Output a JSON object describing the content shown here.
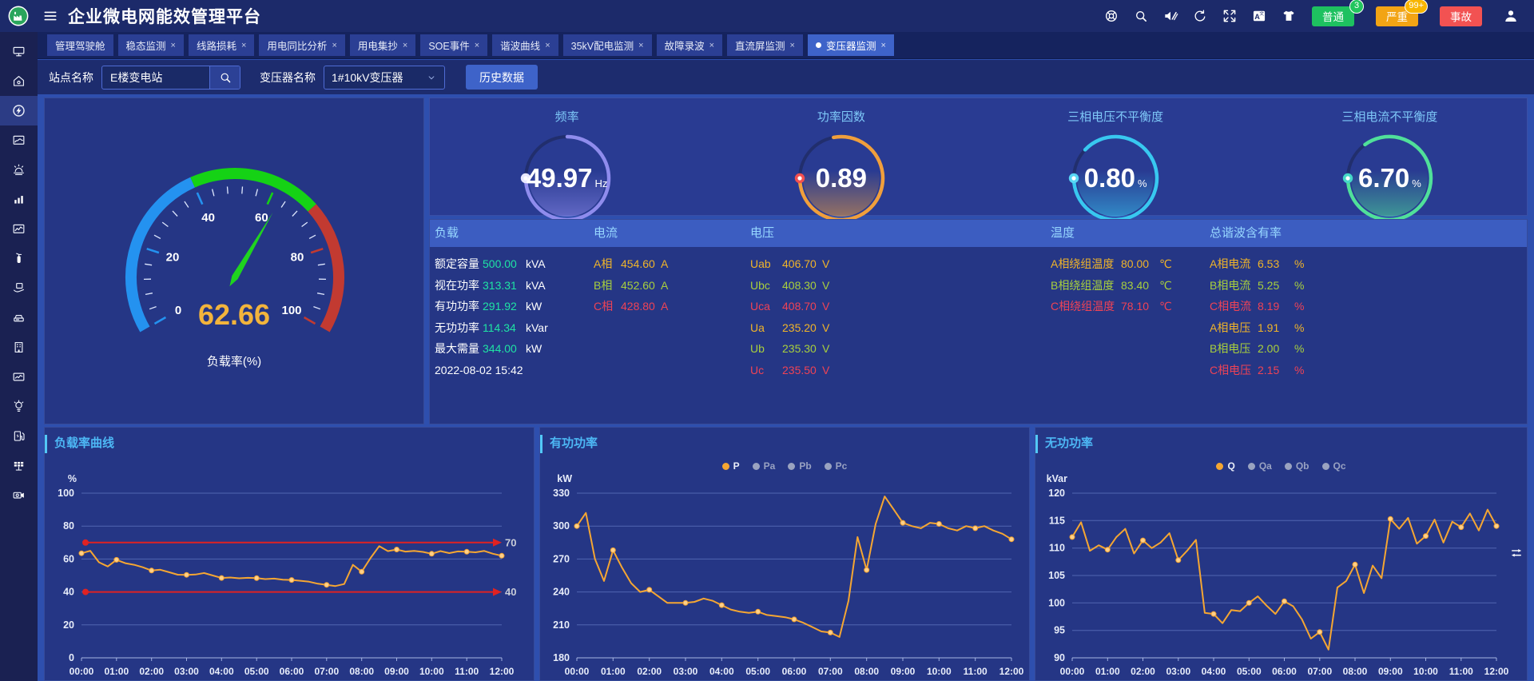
{
  "header": {
    "title": "企业微电网能效管理平台",
    "actions": [
      {
        "name": "help-icon"
      },
      {
        "name": "search-icon"
      },
      {
        "name": "mute-icon"
      },
      {
        "name": "refresh-icon"
      },
      {
        "name": "fullscreen-icon"
      },
      {
        "name": "translate-icon"
      },
      {
        "name": "theme-icon"
      }
    ],
    "alarm_buttons": [
      {
        "label": "普通",
        "badge": "3",
        "color": "#1ec160",
        "badge_color": "#22c55e"
      },
      {
        "label": "严重",
        "badge": "99+",
        "color": "#f2a414",
        "badge_color": "#f7b500"
      },
      {
        "label": "事故",
        "badge": "",
        "color": "#f25252",
        "badge_color": ""
      }
    ],
    "user_icon": "user-icon"
  },
  "tabs": [
    {
      "label": "管理驾驶舱",
      "closable": false,
      "active": false
    },
    {
      "label": "稳态监测",
      "closable": true,
      "active": false
    },
    {
      "label": "线路损耗",
      "closable": true,
      "active": false
    },
    {
      "label": "用电同比分析",
      "closable": true,
      "active": false
    },
    {
      "label": "用电集抄",
      "closable": true,
      "active": false
    },
    {
      "label": "SOE事件",
      "closable": true,
      "active": false
    },
    {
      "label": "谐波曲线",
      "closable": true,
      "active": false
    },
    {
      "label": "35kV配电监测",
      "closable": true,
      "active": false
    },
    {
      "label": "故障录波",
      "closable": true,
      "active": false
    },
    {
      "label": "直流屏监测",
      "closable": true,
      "active": false
    },
    {
      "label": "变压器监测",
      "closable": true,
      "active": true
    }
  ],
  "filters": {
    "site_label": "站点名称",
    "site_value": "E楼变电站",
    "transformer_label": "变压器名称",
    "transformer_value": "1#10kV变压器",
    "history_button": "历史数据"
  },
  "sidebar": {
    "items": [
      {
        "name": "screen-wall-icon"
      },
      {
        "name": "home-monitor-icon"
      },
      {
        "name": "energy-flow-icon",
        "active": true
      },
      {
        "name": "area-chart-icon"
      },
      {
        "name": "alarm-icon"
      },
      {
        "name": "bar-chart-icon"
      },
      {
        "name": "line-chart-icon"
      },
      {
        "name": "fire-extinguisher-icon"
      },
      {
        "name": "hand-report-icon"
      },
      {
        "name": "scanner-icon"
      },
      {
        "name": "building-icon"
      },
      {
        "name": "trend-card-icon"
      },
      {
        "name": "bulb-icon"
      },
      {
        "name": "ev-charger-icon"
      },
      {
        "name": "grid-panel-icon"
      },
      {
        "name": "camera-icon"
      }
    ]
  },
  "palette": {
    "ok": "#1fe3a4",
    "a": "#f0b429",
    "b": "#a8cf3d",
    "c": "#ef4355",
    "w": "#ffffff"
  },
  "load_gauge": {
    "value": 62.66,
    "label": "负载率(%)",
    "min": 0,
    "max": 100,
    "ticks": [
      0,
      20,
      40,
      60,
      80,
      100
    ],
    "segments": [
      {
        "to": 40,
        "color": "#2492f0"
      },
      {
        "to": 70,
        "color": "#15d215"
      },
      {
        "to": 100,
        "color": "#c23a31"
      }
    ],
    "value_color": "#f2b43c",
    "needle_color": "#1fd41f"
  },
  "ring_gauges": [
    {
      "title": "频率",
      "value": "49.97",
      "unit": "Hz",
      "color": "#8f8ced",
      "dot": "#e9e9ff"
    },
    {
      "title": "功率因数",
      "value": "0.89",
      "unit": "",
      "color": "#f09f3c",
      "dot": "#f25050"
    },
    {
      "title": "三相电压不平衡度",
      "value": "0.80",
      "unit": "%",
      "color": "#38c8f0",
      "dot": "#58d6f5"
    },
    {
      "title": "三相电流不平衡度",
      "value": "6.70",
      "unit": "%",
      "color": "#50e09a",
      "dot": "#45d8c8"
    }
  ],
  "table": {
    "columns": [
      {
        "header": "负载",
        "rows": [
          {
            "label": "额定容量",
            "value": "500.00",
            "unit": "kVA",
            "c": "ok"
          },
          {
            "label": "视在功率",
            "value": "313.31",
            "unit": "kVA",
            "c": "ok"
          },
          {
            "label": "有功功率",
            "value": "291.92",
            "unit": "kW",
            "c": "ok"
          },
          {
            "label": "无功功率",
            "value": "114.34",
            "unit": "kVar",
            "c": "ok"
          },
          {
            "label": "最大需量",
            "value": "344.00",
            "unit": "kW",
            "c": "ok"
          },
          {
            "label": "2022-08-02 15:42",
            "value": "",
            "unit": "",
            "c": "w"
          }
        ]
      },
      {
        "header": "电流",
        "rows": [
          {
            "label": "A相",
            "value": "454.60",
            "unit": "A",
            "c": "a"
          },
          {
            "label": "B相",
            "value": "452.60",
            "unit": "A",
            "c": "b"
          },
          {
            "label": "C相",
            "value": "428.80",
            "unit": "A",
            "c": "c"
          }
        ]
      },
      {
        "header": "电压",
        "rows": [
          {
            "label": "Uab",
            "value": "406.70",
            "unit": "V",
            "c": "a"
          },
          {
            "label": "Ubc",
            "value": "408.30",
            "unit": "V",
            "c": "b"
          },
          {
            "label": "Uca",
            "value": "408.70",
            "unit": "V",
            "c": "c"
          },
          {
            "label": "Ua",
            "value": "235.20",
            "unit": "V",
            "c": "a"
          },
          {
            "label": "Ub",
            "value": "235.30",
            "unit": "V",
            "c": "b"
          },
          {
            "label": "Uc",
            "value": "235.50",
            "unit": "V",
            "c": "c"
          }
        ]
      },
      {
        "header": "温度",
        "rows": [
          {
            "label": "A相绕组温度",
            "value": "80.00",
            "unit": "℃",
            "c": "a"
          },
          {
            "label": "B相绕组温度",
            "value": "83.40",
            "unit": "℃",
            "c": "b"
          },
          {
            "label": "C相绕组温度",
            "value": "78.10",
            "unit": "℃",
            "c": "c"
          }
        ]
      },
      {
        "header": "总谐波含有率",
        "rows": [
          {
            "label": "A相电流",
            "value": "6.53",
            "unit": "%",
            "c": "a"
          },
          {
            "label": "B相电流",
            "value": "5.25",
            "unit": "%",
            "c": "b"
          },
          {
            "label": "C相电流",
            "value": "8.19",
            "unit": "%",
            "c": "c"
          },
          {
            "label": "A相电压",
            "value": "1.91",
            "unit": "%",
            "c": "a"
          },
          {
            "label": "B相电压",
            "value": "2.00",
            "unit": "%",
            "c": "b"
          },
          {
            "label": "C相电压",
            "value": "2.15",
            "unit": "%",
            "c": "c"
          }
        ]
      }
    ]
  },
  "chart_data": [
    {
      "type": "line",
      "title": "负载率曲线",
      "ylabel": "%",
      "ylim": [
        0,
        100
      ],
      "ytick_step": 20,
      "grid": true,
      "x_labels": [
        "00:00",
        "01:00",
        "02:00",
        "03:00",
        "04:00",
        "05:00",
        "06:00",
        "07:00",
        "08:00",
        "09:00",
        "10:00",
        "11:00",
        "12:00"
      ],
      "series": [
        {
          "name": "负载率",
          "color": "#f5a632",
          "values": [
            63.5,
            65,
            58,
            55.5,
            59.5,
            57.5,
            56.5,
            55,
            53,
            53.5,
            52,
            50.5,
            50.4,
            50.6,
            51.5,
            50,
            48.5,
            48.8,
            48.3,
            48.6,
            48.4,
            47.8,
            48.1,
            47.5,
            47.3,
            46.8,
            46.2,
            45,
            44.3,
            43.6,
            44.8,
            56.5,
            52.3,
            60.5,
            67.8,
            64.8,
            65.8,
            64.5,
            64.9,
            64.3,
            63.2,
            64.8,
            63.6,
            64.6,
            64.4,
            64.1,
            64.9,
            63.2,
            62
          ]
        }
      ],
      "thresholds": [
        {
          "value": 70,
          "label": "70",
          "color": "#e02222"
        },
        {
          "value": 40,
          "label": "40",
          "color": "#e02222"
        }
      ]
    },
    {
      "type": "line",
      "title": "有功功率",
      "ylabel": "kW",
      "ylim": [
        180,
        330
      ],
      "ytick_step": 30,
      "grid": true,
      "legend": [
        {
          "name": "P",
          "active": true,
          "color": "#f5a632"
        },
        {
          "name": "Pa",
          "active": false,
          "color": "#9aa3c0"
        },
        {
          "name": "Pb",
          "active": false,
          "color": "#9aa3c0"
        },
        {
          "name": "Pc",
          "active": false,
          "color": "#9aa3c0"
        }
      ],
      "x_labels": [
        "00:00",
        "01:00",
        "02:00",
        "03:00",
        "04:00",
        "05:00",
        "06:00",
        "07:00",
        "08:00",
        "09:00",
        "10:00",
        "11:00",
        "12:00"
      ],
      "series": [
        {
          "name": "P",
          "color": "#f5a632",
          "values": [
            300,
            312,
            270,
            250,
            278,
            262,
            248,
            240,
            242,
            236,
            230,
            230,
            230,
            231,
            234,
            232,
            228,
            224,
            222,
            221,
            222,
            219,
            218,
            217,
            215,
            212,
            208,
            204,
            203,
            199,
            232,
            290,
            260,
            302,
            327,
            315,
            303,
            300,
            298,
            303,
            302,
            298,
            296,
            300,
            298,
            300,
            296,
            293,
            288
          ]
        }
      ]
    },
    {
      "type": "line",
      "title": "无功功率",
      "ylabel": "kVar",
      "ylim": [
        90,
        120
      ],
      "ytick_step": 5,
      "grid": true,
      "legend": [
        {
          "name": "Q",
          "active": true,
          "color": "#f5a632"
        },
        {
          "name": "Qa",
          "active": false,
          "color": "#9aa3c0"
        },
        {
          "name": "Qb",
          "active": false,
          "color": "#9aa3c0"
        },
        {
          "name": "Qc",
          "active": false,
          "color": "#9aa3c0"
        }
      ],
      "x_labels": [
        "00:00",
        "01:00",
        "02:00",
        "03:00",
        "04:00",
        "05:00",
        "06:00",
        "07:00",
        "08:00",
        "09:00",
        "10:00",
        "11:00",
        "12:00"
      ],
      "series": [
        {
          "name": "Q",
          "color": "#f5a632",
          "values": [
            112,
            114.7,
            109.5,
            110.5,
            109.7,
            112,
            113.5,
            109,
            111.4,
            110,
            111,
            112.7,
            107.8,
            109.5,
            111.5,
            98.2,
            98,
            96.3,
            98.7,
            98.5,
            100,
            101.2,
            99.5,
            98,
            100.3,
            99.4,
            97,
            93.5,
            94.7,
            91.5,
            102.8,
            104,
            107,
            101.8,
            106.8,
            104.5,
            115.3,
            113.5,
            115.5,
            110.8,
            112.2,
            115.2,
            111,
            114.8,
            113.8,
            116.3,
            113.2,
            117,
            114
          ]
        }
      ]
    }
  ]
}
